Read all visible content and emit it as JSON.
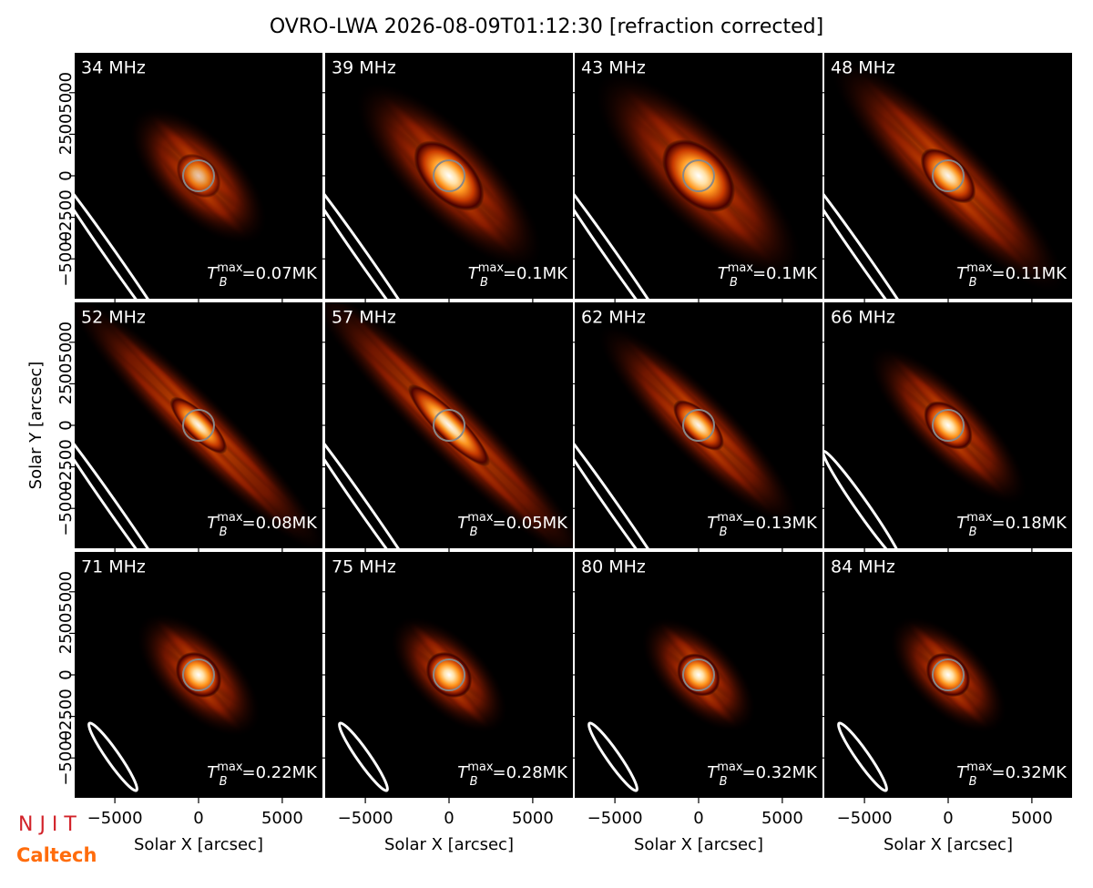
{
  "chart_data": {
    "type": "image-grid",
    "title": "OVRO-LWA 2026-08-09T01:12:30 [refraction corrected]",
    "xlabel": "Solar X [arcsec]",
    "ylabel": "Solar Y [arcsec]",
    "xlim": [
      -7400,
      7400
    ],
    "ylim": [
      -7400,
      7400
    ],
    "xticks": [
      {
        "value": -5000,
        "label": "−5000"
      },
      0,
      5000
    ],
    "yticks": [
      {
        "value": -5000,
        "label": "−5000"
      },
      {
        "value": -2500,
        "label": "−2500"
      },
      0,
      2500,
      5000
    ],
    "tb_symbol": {
      "base": "T",
      "sub": "B",
      "sup": "max",
      "equals": "="
    },
    "panels": [
      {
        "label": "34 MHz",
        "tb": "0.07MK"
      },
      {
        "label": "39 MHz",
        "tb": "0.1MK"
      },
      {
        "label": "43 MHz",
        "tb": "0.1MK"
      },
      {
        "label": "48 MHz",
        "tb": "0.11MK"
      },
      {
        "label": "52 MHz",
        "tb": "0.08MK"
      },
      {
        "label": "57 MHz",
        "tb": "0.05MK"
      },
      {
        "label": "62 MHz",
        "tb": "0.13MK"
      },
      {
        "label": "66 MHz",
        "tb": "0.18MK"
      },
      {
        "label": "71 MHz",
        "tb": "0.22MK"
      },
      {
        "label": "75 MHz",
        "tb": "0.28MK"
      },
      {
        "label": "80 MHz",
        "tb": "0.32MK"
      },
      {
        "label": "84 MHz",
        "tb": "0.32MK"
      }
    ],
    "logos": {
      "njit": "N J I T",
      "caltech": "Caltech"
    }
  }
}
